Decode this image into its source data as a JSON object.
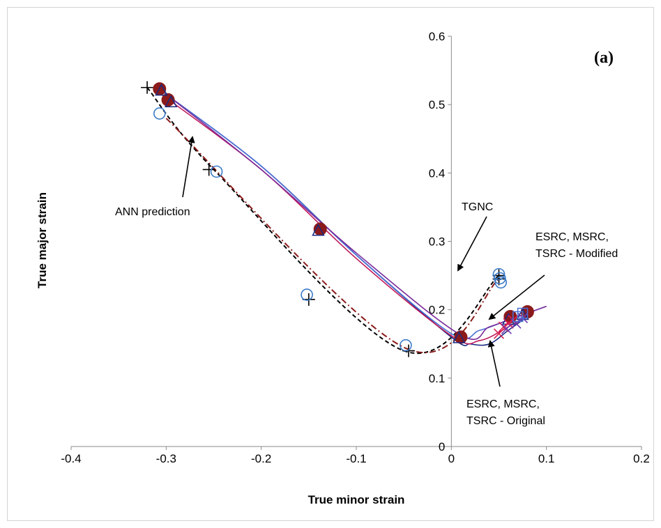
{
  "chart_data": {
    "type": "scatter",
    "xlabel": "True minor strain",
    "ylabel": "True major strain",
    "panel_label": "(a)",
    "xlim": [
      -0.4,
      0.2
    ],
    "ylim": [
      0,
      0.6
    ],
    "x_ticks": [
      "-0.4",
      "-0.3",
      "-0.2",
      "-0.1",
      "0",
      "0.1",
      "0.2"
    ],
    "y_ticks": [
      "0",
      "0.1",
      "0.2",
      "0.3",
      "0.4",
      "0.5",
      "0.6"
    ],
    "grid": false,
    "annotations": [
      {
        "id": "ann",
        "text": "ANN prediction"
      },
      {
        "id": "tgnc",
        "text": "TGNC"
      },
      {
        "id": "modified",
        "lines": [
          "ESRC, MSRC,",
          "TSRC - Modified"
        ]
      },
      {
        "id": "original",
        "lines": [
          "ESRC, MSRC,",
          "TSRC - Original"
        ]
      }
    ],
    "series": [
      {
        "color": "#000000",
        "style": "dashed",
        "x": [
          -0.32,
          -0.25,
          -0.05,
          0.05
        ],
        "y": [
          0.525,
          0.405,
          0.14,
          0.25
        ]
      },
      {
        "color": "#8b1a1a",
        "style": "dashdot",
        "x": [
          -0.3,
          -0.05,
          0.05
        ],
        "y": [
          0.48,
          0.145,
          0.245
        ]
      },
      {
        "color": "#1a2a80",
        "style": "solid",
        "x": [
          -0.31,
          -0.2,
          -0.1,
          0.0,
          0.02,
          0.04,
          0.06,
          0.08
        ],
        "y": [
          0.525,
          0.41,
          0.28,
          0.16,
          0.15,
          0.15,
          0.17,
          0.19
        ]
      },
      {
        "color": "#c0185a",
        "style": "solid",
        "x": [
          -0.31,
          -0.2,
          -0.1,
          0.0,
          0.03,
          0.06,
          0.08
        ],
        "y": [
          0.52,
          0.405,
          0.275,
          0.162,
          0.155,
          0.175,
          0.192
        ]
      },
      {
        "color": "#4a6fd6",
        "style": "solid",
        "x": [
          -0.305,
          -0.2,
          -0.1,
          0.0,
          0.03,
          0.06,
          0.1
        ],
        "y": [
          0.52,
          0.41,
          0.28,
          0.165,
          0.17,
          0.185,
          0.205
        ]
      },
      {
        "color": "#7a2a9a",
        "style": "solid",
        "x": [
          -0.3,
          -0.2,
          -0.1,
          0.01,
          0.04,
          0.07,
          0.1
        ],
        "y": [
          0.515,
          0.405,
          0.283,
          0.163,
          0.175,
          0.19,
          0.205
        ]
      }
    ],
    "markers": [
      {
        "shape": "plus",
        "color": "#000000",
        "x": [
          -0.32,
          -0.255,
          -0.15,
          -0.045,
          0.05,
          0.05
        ],
        "y": [
          0.525,
          0.405,
          0.215,
          0.14,
          0.25,
          0.245
        ]
      },
      {
        "shape": "circle",
        "color": "#3a7ac8",
        "x": [
          -0.307,
          -0.247,
          -0.152,
          -0.048,
          0.05,
          0.051,
          0.052
        ],
        "y": [
          0.487,
          0.402,
          0.222,
          0.148,
          0.252,
          0.246,
          0.24
        ]
      },
      {
        "shape": "filled-circle",
        "color": "#8b1a1a",
        "x": [
          -0.307,
          -0.298,
          -0.138,
          0.01,
          0.062,
          0.08
        ],
        "y": [
          0.523,
          0.507,
          0.318,
          0.16,
          0.19,
          0.197
        ]
      },
      {
        "shape": "triangle",
        "color": "#1a2a80",
        "x": [
          -0.305,
          -0.295,
          -0.14,
          0.008,
          0.06,
          0.075
        ],
        "y": [
          0.52,
          0.503,
          0.315,
          0.158,
          0.185,
          0.192
        ]
      },
      {
        "shape": "x",
        "color": "#d62050",
        "x": [
          0.05,
          0.055,
          0.06,
          0.065
        ],
        "y": [
          0.165,
          0.175,
          0.18,
          0.185
        ]
      },
      {
        "shape": "x",
        "color": "#6a3ab0",
        "x": [
          0.058,
          0.068,
          0.075
        ],
        "y": [
          0.172,
          0.18,
          0.188
        ]
      },
      {
        "shape": "square",
        "color": "#4a6fd6",
        "x": [
          0.07,
          0.075
        ],
        "y": [
          0.19,
          0.195
        ]
      }
    ]
  }
}
